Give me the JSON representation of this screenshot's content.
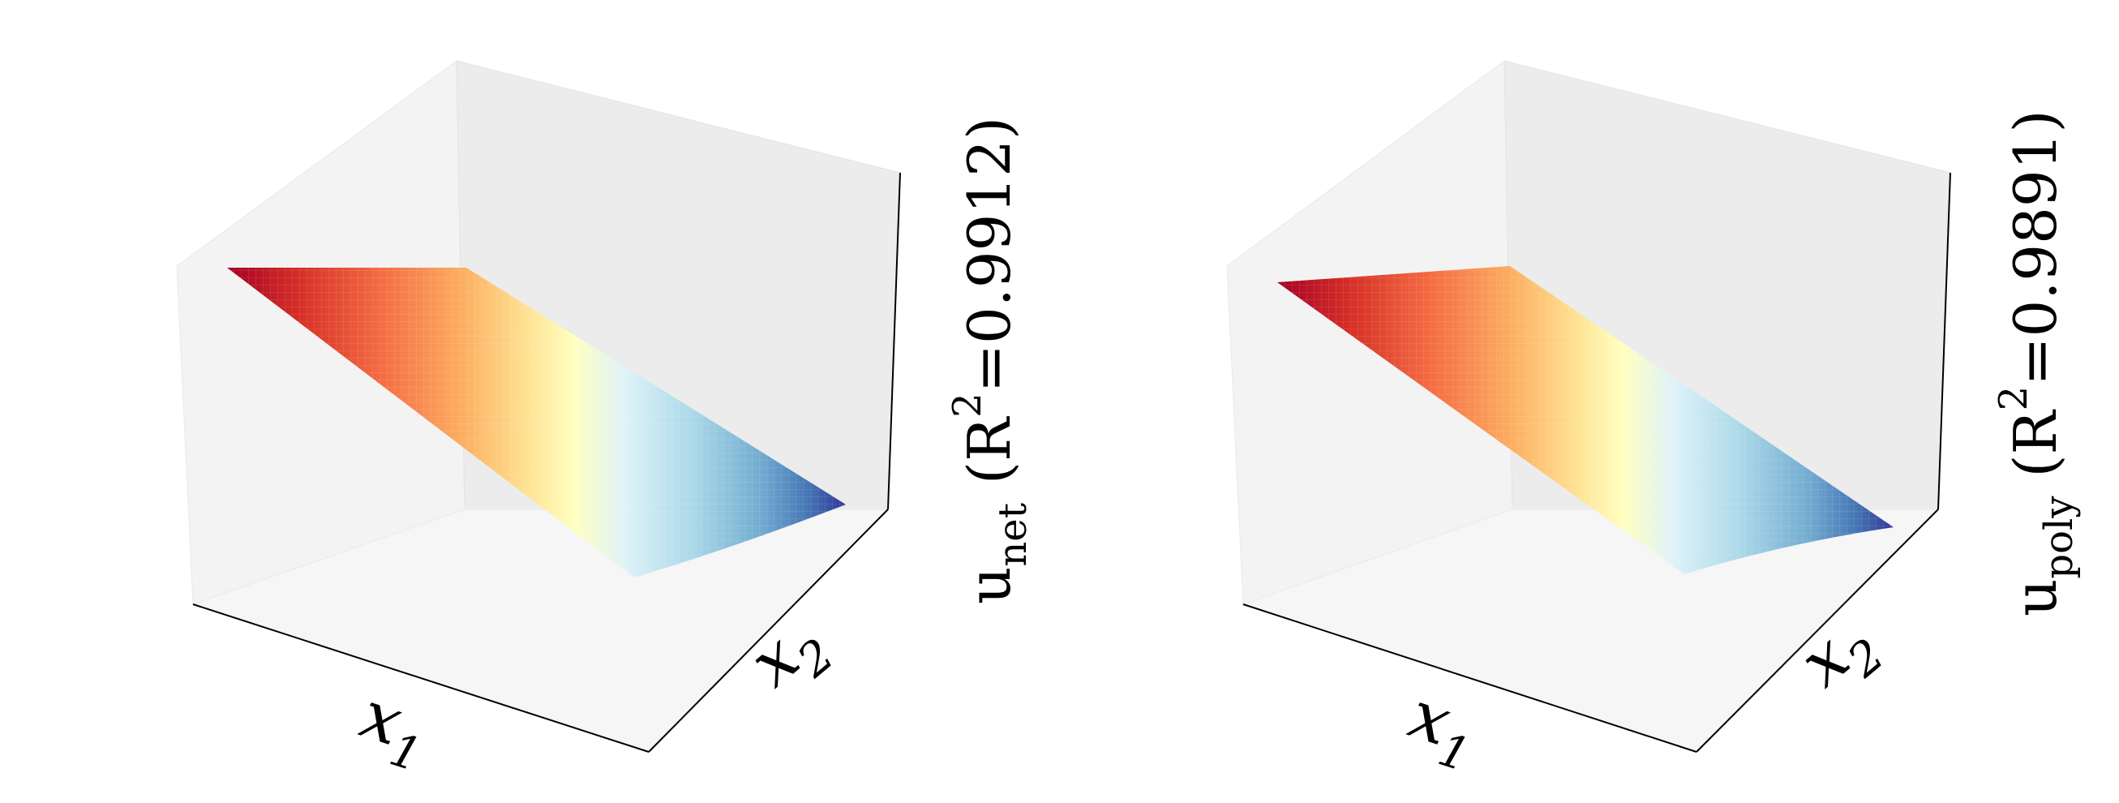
{
  "chart_data": [
    {
      "type": "surface",
      "xlabel": "x",
      "xlabel_sub": "1",
      "ylabel": "x",
      "ylabel_sub": "2",
      "zlabel_main": "u",
      "zlabel_sub": "net",
      "zlabel_rest_open": " (R",
      "zlabel_sup": "2",
      "zlabel_rest_close": "=0.9912)",
      "r2": 0.9912,
      "ticks": "hidden",
      "colormap": "RdYlBu",
      "colors": [
        "#a50026",
        "#f46d43",
        "#fee090",
        "#ffffbf",
        "#e0f3f8",
        "#74add1",
        "#313695"
      ]
    },
    {
      "type": "surface",
      "xlabel": "x",
      "xlabel_sub": "1",
      "ylabel": "x",
      "ylabel_sub": "2",
      "zlabel_main": "u",
      "zlabel_sub": "poly",
      "zlabel_rest_open": " (R",
      "zlabel_sup": "2",
      "zlabel_rest_close": "=0.9891)",
      "r2": 0.9891,
      "ticks": "hidden",
      "colormap": "RdYlBu",
      "colors": [
        "#a50026",
        "#f46d43",
        "#fee090",
        "#ffffbf",
        "#e0f3f8",
        "#74add1",
        "#313695"
      ]
    }
  ]
}
